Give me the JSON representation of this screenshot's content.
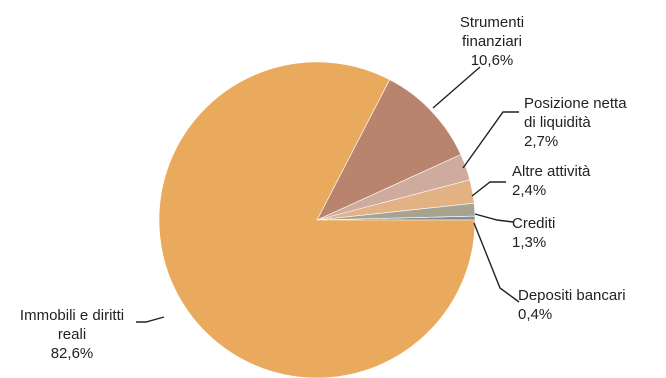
{
  "chart_data": {
    "type": "pie",
    "title": "",
    "slices": [
      {
        "name": "Depositi bancari",
        "value": 0.4,
        "value_label": "0,4%",
        "label_lines": [
          "Depositi bancari"
        ],
        "color": "#7f8fa3"
      },
      {
        "name": "Crediti",
        "value": 1.3,
        "value_label": "1,3%",
        "label_lines": [
          "Crediti"
        ],
        "color": "#a8a290"
      },
      {
        "name": "Altre attività",
        "value": 2.4,
        "value_label": "2,4%",
        "label_lines": [
          "Altre attività"
        ],
        "color": "#e2b285"
      },
      {
        "name": "Posizione netta di liquidità",
        "value": 2.7,
        "value_label": "2,7%",
        "label_lines": [
          "Posizione netta",
          "di liquidità"
        ],
        "color": "#ceab9c"
      },
      {
        "name": "Strumenti finanziari",
        "value": 10.6,
        "value_label": "10,6%",
        "label_lines": [
          "Strumenti",
          "finanziari"
        ],
        "color": "#b9846e"
      },
      {
        "name": "Immobili e diritti reali",
        "value": 82.6,
        "value_label": "82,6%",
        "label_lines": [
          "Immobili e diritti",
          "reali"
        ],
        "color": "#e9aa5e"
      }
    ],
    "start_direction": "3 o'clock",
    "order": "counter-clockwise",
    "legend": "none"
  }
}
